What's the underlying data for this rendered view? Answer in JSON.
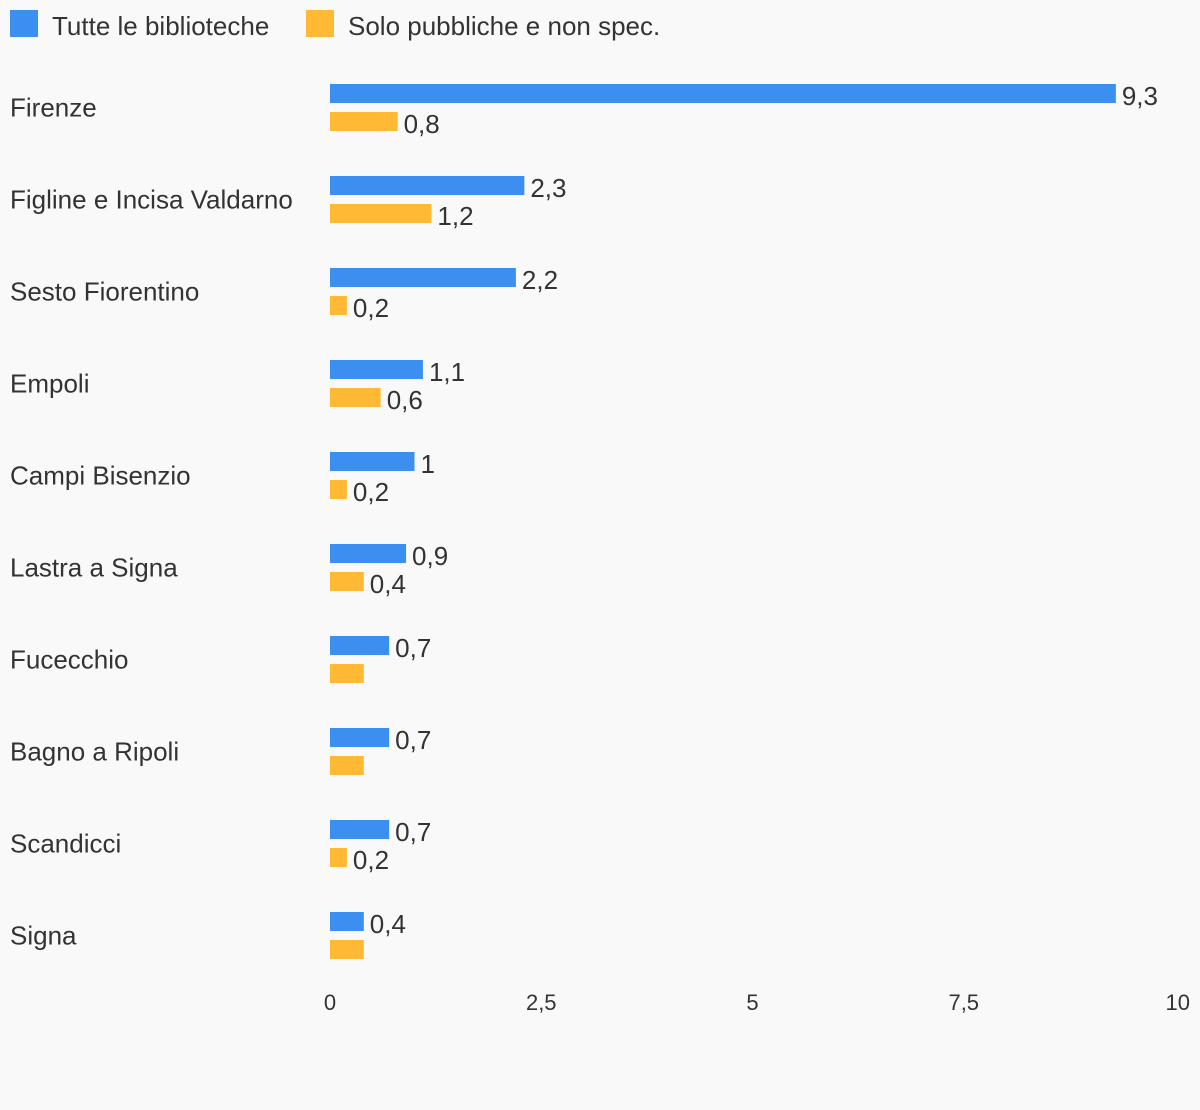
{
  "chart_data": {
    "type": "bar",
    "orientation": "horizontal",
    "categories": [
      "Firenze",
      "Figline e Incisa Valdarno",
      "Sesto Fiorentino",
      "Empoli",
      "Campi Bisenzio",
      "Lastra a Signa",
      "Fucecchio",
      "Bagno a Ripoli",
      "Scandicci",
      "Signa"
    ],
    "series": [
      {
        "name": "Tutte le biblioteche",
        "color": "#3a8ff0",
        "values": [
          9.3,
          2.3,
          2.2,
          1.1,
          1,
          0.9,
          0.7,
          0.7,
          0.7,
          0.4
        ],
        "labels": [
          "9,3",
          "2,3",
          "2,2",
          "1,1",
          "1",
          "0,9",
          "0,7",
          "0,7",
          "0,7",
          "0,4"
        ]
      },
      {
        "name": "Solo pubbliche e non spec.",
        "color": "#ffb934",
        "values": [
          0.8,
          1.2,
          0.2,
          0.6,
          0.2,
          0.4,
          0.4,
          0.4,
          0.2,
          0.4
        ],
        "labels": [
          "0,8",
          "1,2",
          "0,2",
          "0,6",
          "0,2",
          "0,4",
          "",
          "",
          "0,2",
          ""
        ]
      }
    ],
    "x_ticks": [
      0,
      2.5,
      5,
      7.5,
      10
    ],
    "x_tick_labels": [
      "0",
      "2,5",
      "5",
      "7,5",
      "10"
    ],
    "xlim": [
      0,
      10
    ],
    "grid": false,
    "legend": "top-left"
  }
}
